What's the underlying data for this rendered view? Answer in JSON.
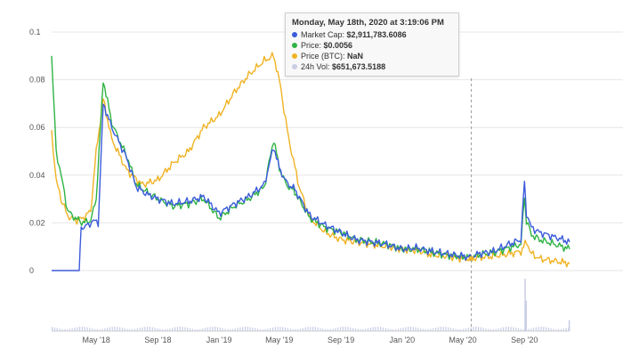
{
  "chart_data": {
    "type": "line",
    "y_ticks": [
      "0.1",
      "0.08",
      "0.06",
      "0.04",
      "0.02",
      "0"
    ],
    "y_tick_values": [
      0.1,
      0.08,
      0.06,
      0.04,
      0.02,
      0
    ],
    "ylim": [
      0,
      0.1
    ],
    "x_ticks": [
      "May '18",
      "Sep '18",
      "Jan '19",
      "May '19",
      "Sep '19",
      "Jan '20",
      "May '20",
      "Sep '20"
    ],
    "x_tick_dates": [
      "2018-05-01",
      "2018-09-01",
      "2019-01-01",
      "2019-05-01",
      "2019-09-01",
      "2020-01-01",
      "2020-05-01",
      "2020-09-01"
    ],
    "xlim": [
      "2018-02-01",
      "2020-11-30"
    ],
    "grid": true,
    "crosshair_date": "2020-05-18",
    "colors": {
      "market_cap": "#3b5bdb",
      "price": "#2fb344",
      "price_btc": "#f0b323",
      "volume": "#c9cde6",
      "grid": "#e6e6e6",
      "crosshair": "#999999"
    },
    "series": [
      {
        "key": "market_cap",
        "x": [
          "2018-02-01",
          "2018-03-01",
          "2018-03-28",
          "2018-04-01",
          "2018-04-15",
          "2018-04-25",
          "2018-05-05",
          "2018-05-15",
          "2018-06-01",
          "2018-06-15",
          "2018-07-01",
          "2018-07-20",
          "2018-08-10",
          "2018-09-01",
          "2018-10-01",
          "2018-11-01",
          "2018-12-01",
          "2019-01-01",
          "2019-02-01",
          "2019-03-01",
          "2019-04-01",
          "2019-04-20",
          "2019-05-01",
          "2019-05-15",
          "2019-06-01",
          "2019-07-01",
          "2019-08-01",
          "2019-09-01",
          "2019-10-01",
          "2019-11-01",
          "2019-12-01",
          "2020-01-01",
          "2020-02-01",
          "2020-03-01",
          "2020-04-01",
          "2020-05-01",
          "2020-05-18",
          "2020-06-01",
          "2020-07-01",
          "2020-08-01",
          "2020-08-25",
          "2020-09-01",
          "2020-09-05",
          "2020-09-15",
          "2020-10-01",
          "2020-11-01",
          "2020-11-30"
        ],
        "y": [
          0,
          0,
          0,
          0.018,
          0.019,
          0.021,
          0.02,
          0.07,
          0.06,
          0.054,
          0.047,
          0.035,
          0.032,
          0.03,
          0.028,
          0.029,
          0.031,
          0.024,
          0.028,
          0.031,
          0.036,
          0.052,
          0.043,
          0.037,
          0.034,
          0.023,
          0.019,
          0.016,
          0.013,
          0.012,
          0.011,
          0.009,
          0.0095,
          0.008,
          0.007,
          0.006,
          0.0056,
          0.007,
          0.008,
          0.011,
          0.013,
          0.037,
          0.024,
          0.018,
          0.016,
          0.014,
          0.012
        ]
      },
      {
        "key": "price",
        "x": [
          "2018-02-01",
          "2018-02-10",
          "2018-02-20",
          "2018-03-05",
          "2018-03-20",
          "2018-04-05",
          "2018-04-20",
          "2018-05-01",
          "2018-05-15",
          "2018-06-01",
          "2018-06-15",
          "2018-07-01",
          "2018-07-20",
          "2018-08-10",
          "2018-09-01",
          "2018-10-01",
          "2018-11-01",
          "2018-12-01",
          "2019-01-01",
          "2019-02-01",
          "2019-03-01",
          "2019-04-01",
          "2019-04-20",
          "2019-05-01",
          "2019-05-15",
          "2019-06-01",
          "2019-07-01",
          "2019-08-01",
          "2019-09-01",
          "2019-10-01",
          "2019-11-01",
          "2019-12-01",
          "2020-01-01",
          "2020-02-01",
          "2020-03-01",
          "2020-04-01",
          "2020-05-01",
          "2020-05-18",
          "2020-06-01",
          "2020-07-01",
          "2020-08-01",
          "2020-08-25",
          "2020-09-01",
          "2020-09-05",
          "2020-09-15",
          "2020-10-01",
          "2020-11-01",
          "2020-11-30"
        ],
        "y": [
          0.09,
          0.05,
          0.04,
          0.025,
          0.022,
          0.02,
          0.021,
          0.03,
          0.08,
          0.062,
          0.055,
          0.048,
          0.036,
          0.033,
          0.03,
          0.027,
          0.028,
          0.03,
          0.022,
          0.027,
          0.03,
          0.035,
          0.055,
          0.043,
          0.036,
          0.033,
          0.022,
          0.018,
          0.016,
          0.013,
          0.012,
          0.011,
          0.009,
          0.009,
          0.0075,
          0.0065,
          0.0058,
          0.0056,
          0.0065,
          0.0075,
          0.0095,
          0.011,
          0.031,
          0.021,
          0.015,
          0.013,
          0.011,
          0.009
        ]
      },
      {
        "key": "price_btc",
        "x": [
          "2018-02-01",
          "2018-02-10",
          "2018-02-20",
          "2018-03-05",
          "2018-03-20",
          "2018-04-05",
          "2018-04-20",
          "2018-05-01",
          "2018-05-15",
          "2018-06-01",
          "2018-07-01",
          "2018-08-01",
          "2018-09-01",
          "2018-10-01",
          "2018-11-01",
          "2018-12-01",
          "2019-01-01",
          "2019-02-01",
          "2019-03-01",
          "2019-04-01",
          "2019-04-20",
          "2019-05-01",
          "2019-05-20",
          "2019-06-10",
          "2019-07-01",
          "2019-08-01",
          "2019-09-01",
          "2019-10-01",
          "2019-11-01",
          "2019-12-01",
          "2020-01-01",
          "2020-02-01",
          "2020-03-01",
          "2020-04-01",
          "2020-05-01",
          "2020-05-18",
          "2020-06-01",
          "2020-07-01",
          "2020-08-01",
          "2020-08-25",
          "2020-09-05",
          "2020-09-15",
          "2020-10-01",
          "2020-11-01",
          "2020-11-30"
        ],
        "y": [
          0.058,
          0.038,
          0.03,
          0.023,
          0.021,
          0.022,
          0.025,
          0.05,
          0.072,
          0.055,
          0.042,
          0.036,
          0.038,
          0.045,
          0.05,
          0.06,
          0.065,
          0.075,
          0.082,
          0.088,
          0.09,
          0.08,
          0.055,
          0.035,
          0.022,
          0.016,
          0.013,
          0.012,
          0.011,
          0.01,
          0.009,
          0.0085,
          0.0065,
          0.006,
          0.005,
          0.005,
          0.0055,
          0.006,
          0.007,
          0.008,
          0.012,
          0.007,
          0.005,
          0.004,
          0.003
        ]
      }
    ]
  },
  "tooltip": {
    "title": "Monday, May 18th, 2020 at 3:19:06 PM",
    "rows": [
      {
        "label": "Market Cap:",
        "value": "$2,911,783.6086",
        "color": "#3b5bdb"
      },
      {
        "label": "Price:",
        "value": "$0.0056",
        "color": "#2fb344"
      },
      {
        "label": "Price (BTC):",
        "value": "NaN",
        "color": "#f0b323"
      },
      {
        "label": "24h Vol:",
        "value": "$651,673.5188",
        "color": "#c9cde6"
      }
    ]
  }
}
